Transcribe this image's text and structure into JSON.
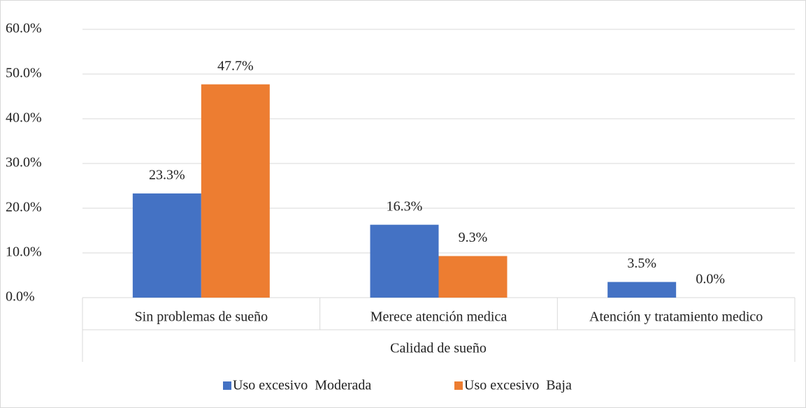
{
  "chart_data": {
    "type": "bar",
    "categories": [
      "Sin problemas de sueño",
      "Merece atención medica",
      "Atención y tratamiento medico"
    ],
    "x_axis_label": "Calidad de sueño",
    "series": [
      {
        "name": "Uso excesivo  Moderada",
        "color": "#4472c4",
        "values": [
          23.3,
          16.3,
          3.5
        ],
        "value_labels": [
          "23.3%",
          "16.3%",
          "3.5%"
        ]
      },
      {
        "name": "Uso excesivo  Baja",
        "color": "#ed7d31",
        "values": [
          47.7,
          9.3,
          0.0
        ],
        "value_labels": [
          "47.7%",
          "9.3%",
          "0.0%"
        ]
      }
    ],
    "ylim": [
      0,
      60
    ],
    "yticks": [
      {
        "value": 0,
        "label": "0.0%"
      },
      {
        "value": 10,
        "label": "10.0%"
      },
      {
        "value": 20,
        "label": "20.0%"
      },
      {
        "value": 30,
        "label": "30.0%"
      },
      {
        "value": 40,
        "label": "40.0%"
      },
      {
        "value": 50,
        "label": "50.0%"
      },
      {
        "value": 60,
        "label": "60.0%"
      }
    ],
    "grid": true,
    "legend": "bottom"
  }
}
